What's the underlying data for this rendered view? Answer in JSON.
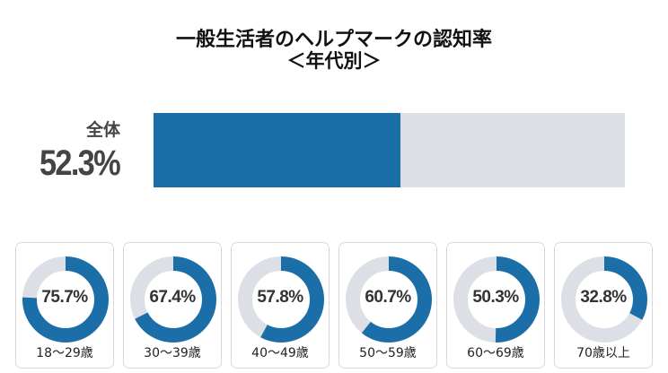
{
  "title": {
    "line1": "一般生活者のヘルプマークの認知率",
    "line2": "＜年代別＞"
  },
  "overall": {
    "label": "全体",
    "value_text": "52.3%",
    "value": 52.3
  },
  "colors": {
    "fill": "#1c6ea8",
    "track": "#dcdfe5",
    "card_border": "#d9d9d9"
  },
  "groups": [
    {
      "label": "18〜29歳",
      "value_text": "75.7%",
      "value": 75.7
    },
    {
      "label": "30〜39歳",
      "value_text": "67.4%",
      "value": 67.4
    },
    {
      "label": "40〜49歳",
      "value_text": "57.8%",
      "value": 57.8
    },
    {
      "label": "50〜59歳",
      "value_text": "60.7%",
      "value": 60.7
    },
    {
      "label": "60〜69歳",
      "value_text": "50.3%",
      "value": 50.3
    },
    {
      "label": "70歳以上",
      "value_text": "32.8%",
      "value": 32.8
    }
  ],
  "chart_data": [
    {
      "type": "bar",
      "title": "一般生活者のヘルプマークの認知率 ＜年代別＞",
      "categories": [
        "全体"
      ],
      "values": [
        52.3
      ],
      "xlabel": "",
      "ylabel": "",
      "ylim": [
        0,
        100
      ],
      "orientation": "horizontal",
      "grid": false,
      "legend": "none"
    },
    {
      "type": "pie",
      "subtype": "donut",
      "categories": [
        "18〜29歳",
        "30〜39歳",
        "40〜49歳",
        "50〜59歳",
        "60〜69歳",
        "70歳以上"
      ],
      "values": [
        75.7,
        67.4,
        57.8,
        60.7,
        50.3,
        32.8
      ],
      "unit": "%",
      "legend": "none"
    }
  ]
}
